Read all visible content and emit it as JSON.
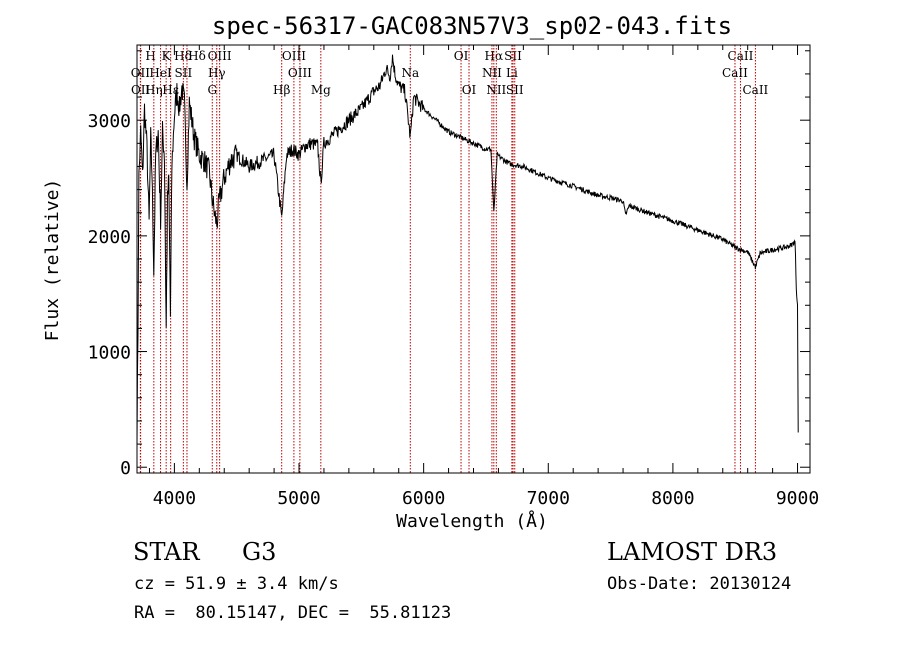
{
  "chart_data": {
    "type": "line",
    "title": "spec-56317-GAC083N57V3_sp02-043.fits",
    "xlabel": "Wavelength (Å)",
    "ylabel": "Flux (relative)",
    "xlim": [
      3700,
      9100
    ],
    "ylim": [
      -50,
      3650
    ],
    "xticks": [
      4000,
      5000,
      6000,
      7000,
      8000,
      9000
    ],
    "yticks": [
      0,
      1000,
      2000,
      3000
    ],
    "anchors": [
      [
        3700,
        300
      ],
      [
        3708,
        1200
      ],
      [
        3715,
        2500
      ],
      [
        3730,
        2900
      ],
      [
        3745,
        2500
      ],
      [
        3760,
        3100
      ],
      [
        3780,
        2750
      ],
      [
        3797,
        2100
      ],
      [
        3810,
        2850
      ],
      [
        3820,
        2550
      ],
      [
        3835,
        1700
      ],
      [
        3850,
        2700
      ],
      [
        3870,
        2900
      ],
      [
        3889,
        2150
      ],
      [
        3905,
        2900
      ],
      [
        3920,
        2700
      ],
      [
        3934,
        1200
      ],
      [
        3945,
        2300
      ],
      [
        3955,
        2500
      ],
      [
        3968,
        1300
      ],
      [
        3980,
        2600
      ],
      [
        4000,
        3050
      ],
      [
        4020,
        3250
      ],
      [
        4040,
        3100
      ],
      [
        4060,
        3280
      ],
      [
        4080,
        3150
      ],
      [
        4101,
        2450
      ],
      [
        4120,
        3150
      ],
      [
        4140,
        3000
      ],
      [
        4160,
        2850
      ],
      [
        4200,
        2700
      ],
      [
        4240,
        2650
      ],
      [
        4280,
        2550
      ],
      [
        4300,
        2350
      ],
      [
        4320,
        2200
      ],
      [
        4340,
        2100
      ],
      [
        4360,
        2300
      ],
      [
        4400,
        2500
      ],
      [
        4450,
        2650
      ],
      [
        4500,
        2700
      ],
      [
        4550,
        2650
      ],
      [
        4600,
        2600
      ],
      [
        4700,
        2650
      ],
      [
        4800,
        2700
      ],
      [
        4861,
        2150
      ],
      [
        4900,
        2700
      ],
      [
        4950,
        2750
      ],
      [
        5000,
        2700
      ],
      [
        5050,
        2780
      ],
      [
        5100,
        2800
      ],
      [
        5150,
        2780
      ],
      [
        5175,
        2450
      ],
      [
        5200,
        2800
      ],
      [
        5300,
        2900
      ],
      [
        5400,
        3000
      ],
      [
        5500,
        3100
      ],
      [
        5600,
        3250
      ],
      [
        5650,
        3300
      ],
      [
        5700,
        3450
      ],
      [
        5730,
        3380
      ],
      [
        5750,
        3550
      ],
      [
        5770,
        3400
      ],
      [
        5800,
        3300
      ],
      [
        5850,
        3250
      ],
      [
        5893,
        2850
      ],
      [
        5920,
        3200
      ],
      [
        6000,
        3100
      ],
      [
        6100,
        3000
      ],
      [
        6200,
        2900
      ],
      [
        6300,
        2850
      ],
      [
        6400,
        2800
      ],
      [
        6500,
        2750
      ],
      [
        6540,
        2750
      ],
      [
        6563,
        2200
      ],
      [
        6590,
        2700
      ],
      [
        6650,
        2650
      ],
      [
        6700,
        2620
      ],
      [
        6800,
        2600
      ],
      [
        6900,
        2550
      ],
      [
        7000,
        2500
      ],
      [
        7200,
        2430
      ],
      [
        7400,
        2350
      ],
      [
        7500,
        2330
      ],
      [
        7600,
        2300
      ],
      [
        7620,
        2180
      ],
      [
        7650,
        2260
      ],
      [
        7800,
        2200
      ],
      [
        8000,
        2130
      ],
      [
        8200,
        2050
      ],
      [
        8400,
        1970
      ],
      [
        8500,
        1900
      ],
      [
        8600,
        1860
      ],
      [
        8662,
        1730
      ],
      [
        8700,
        1850
      ],
      [
        8800,
        1880
      ],
      [
        8900,
        1900
      ],
      [
        8950,
        1920
      ],
      [
        8980,
        1950
      ],
      [
        8990,
        1550
      ],
      [
        9000,
        1400
      ],
      [
        9005,
        300
      ]
    ],
    "lines": [
      {
        "name": "Hδ",
        "wl": 4101,
        "row": 0,
        "dx": -4
      },
      {
        "name": "K",
        "wl": 3934,
        "row": 0,
        "dx": 0
      },
      {
        "name": "H",
        "wl": 3889,
        "row": 0,
        "dx": -10
      },
      {
        "name": "Hδ",
        "wl": 4101,
        "row": 0,
        "dx": 10
      },
      {
        "name": "OIII",
        "wl": 4363,
        "row": 0,
        "dx": 0
      },
      {
        "name": "OIII",
        "wl": 4959,
        "row": 0,
        "dx": 0
      },
      {
        "name": "OI",
        "wl": 6300,
        "row": 0,
        "dx": 0
      },
      {
        "name": "Hα",
        "wl": 6563,
        "row": 0,
        "dx": 0
      },
      {
        "name": "SII",
        "wl": 6717,
        "row": 0,
        "dx": 0
      },
      {
        "name": "CaII",
        "wl": 8542,
        "row": 0,
        "dx": 0
      },
      {
        "name": "OII",
        "wl": 3727,
        "row": 1,
        "dx": 0
      },
      {
        "name": "HeI",
        "wl": 3889,
        "row": 1,
        "dx": 0
      },
      {
        "name": "SII",
        "wl": 4072,
        "row": 1,
        "dx": 0
      },
      {
        "name": "Hγ",
        "wl": 4340,
        "row": 1,
        "dx": 0
      },
      {
        "name": "OIII",
        "wl": 5007,
        "row": 1,
        "dx": 0
      },
      {
        "name": "Na",
        "wl": 5893,
        "row": 1,
        "dx": 0
      },
      {
        "name": "NII",
        "wl": 6548,
        "row": 1,
        "dx": 0
      },
      {
        "name": "Li",
        "wl": 6708,
        "row": 1,
        "dx": 0
      },
      {
        "name": "CaII",
        "wl": 8498,
        "row": 1,
        "dx": 0
      },
      {
        "name": "OII",
        "wl": 3729,
        "row": 2,
        "dx": 0
      },
      {
        "name": "Hη",
        "wl": 3835,
        "row": 2,
        "dx": 0
      },
      {
        "name": "Hε",
        "wl": 3970,
        "row": 2,
        "dx": 0
      },
      {
        "name": "G",
        "wl": 4304,
        "row": 2,
        "dx": 0
      },
      {
        "name": "Hβ",
        "wl": 4861,
        "row": 2,
        "dx": 0
      },
      {
        "name": "Mg",
        "wl": 5175,
        "row": 2,
        "dx": 0
      },
      {
        "name": "OI",
        "wl": 6364,
        "row": 2,
        "dx": 0
      },
      {
        "name": "NII",
        "wl": 6583,
        "row": 2,
        "dx": 0
      },
      {
        "name": "SII",
        "wl": 6731,
        "row": 2,
        "dx": 0
      },
      {
        "name": "CaII",
        "wl": 8662,
        "row": 2,
        "dx": 0
      }
    ],
    "line_color": "#c00000"
  },
  "info": {
    "class": "STAR",
    "subclass": "G3",
    "survey": "LAMOST DR3",
    "cz": "cz = 51.9 ± 3.4 km/s",
    "obs_date": "Obs-Date: 20130124",
    "coords": "RA =  80.15147, DEC =  55.81123"
  }
}
